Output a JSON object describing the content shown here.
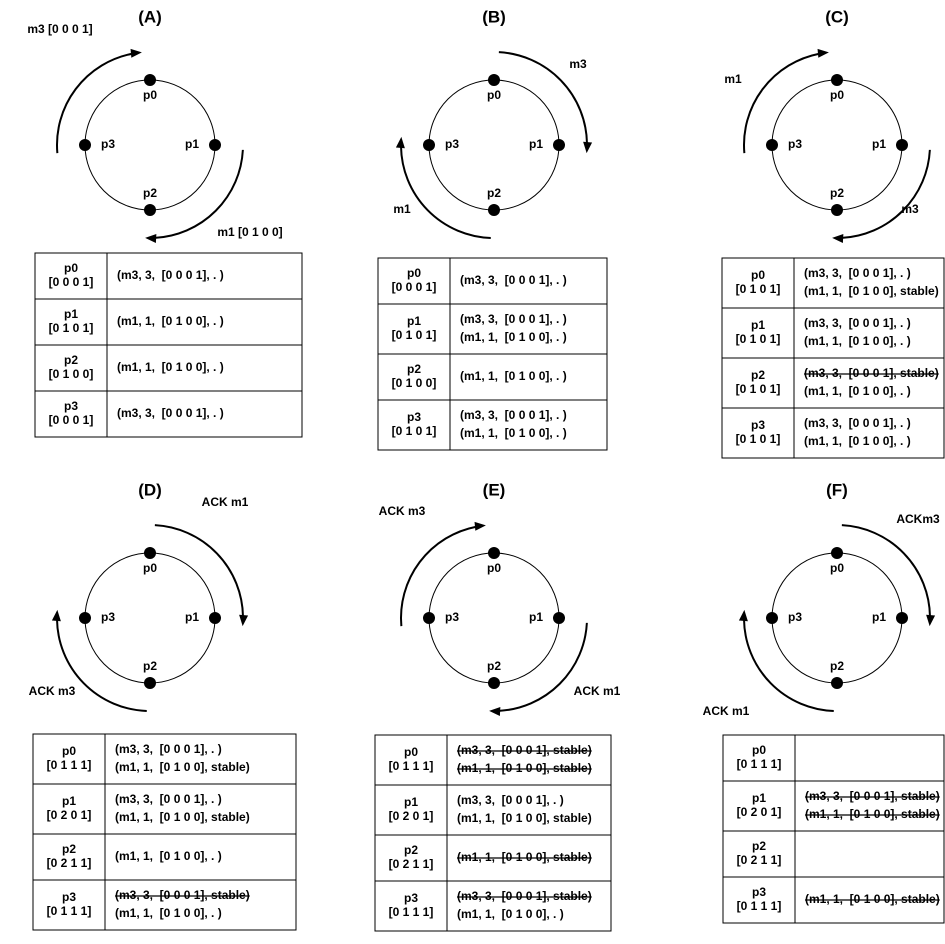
{
  "panels": [
    {
      "label": "(A)",
      "nodes": [
        "p0",
        "p1",
        "p2",
        "p3"
      ],
      "arrows": [
        "m3 [0 0 0 1]",
        "m1 [0 1 0 0]"
      ],
      "rows": [
        {
          "process": "p0",
          "vector": "[0 0 0 1]",
          "entries": [
            {
              "text": "(m3, 3,  [0 0 0 1], . )"
            }
          ]
        },
        {
          "process": "p1",
          "vector": "[0 1 0 1]",
          "entries": [
            {
              "text": "(m1, 1,  [0 1 0 0], . )"
            }
          ]
        },
        {
          "process": "p2",
          "vector": "[0 1 0 0]",
          "entries": [
            {
              "text": "(m1, 1,  [0 1 0 0], . )"
            }
          ]
        },
        {
          "process": "p3",
          "vector": "[0 0 0 1]",
          "entries": [
            {
              "text": "(m3, 3,  [0 0 0 1], . )"
            }
          ]
        }
      ]
    },
    {
      "label": "(B)",
      "nodes": [
        "p0",
        "p1",
        "p2",
        "p3"
      ],
      "arrows": [
        "m3",
        "m1"
      ],
      "rows": [
        {
          "process": "p0",
          "vector": "[0 0 0 1]",
          "entries": [
            {
              "text": "(m3, 3,  [0 0 0 1], . )"
            }
          ]
        },
        {
          "process": "p1",
          "vector": "[0 1 0 1]",
          "entries": [
            {
              "text": "(m3, 3,  [0 0 0 1], . )"
            },
            {
              "text": "(m1, 1,  [0 1 0 0], . )"
            }
          ]
        },
        {
          "process": "p2",
          "vector": "[0 1 0 0]",
          "entries": [
            {
              "text": "(m1, 1,  [0 1 0 0], . )"
            }
          ]
        },
        {
          "process": "p3",
          "vector": "[0 1 0 1]",
          "entries": [
            {
              "text": "(m3, 3,  [0 0 0 1], . )"
            },
            {
              "text": "(m1, 1,  [0 1 0 0], . )"
            }
          ]
        }
      ]
    },
    {
      "label": "(C)",
      "nodes": [
        "p0",
        "p1",
        "p2",
        "p3"
      ],
      "arrows": [
        "m1",
        "m3"
      ],
      "rows": [
        {
          "process": "p0",
          "vector": "[0 1 0 1]",
          "entries": [
            {
              "text": "(m3, 3,  [0 0 0 1], . )"
            },
            {
              "text": "(m1, 1,  [0 1 0 0], stable)"
            }
          ]
        },
        {
          "process": "p1",
          "vector": "[0 1 0 1]",
          "entries": [
            {
              "text": "(m3, 3,  [0 0 0 1], . )"
            },
            {
              "text": "(m1, 1,  [0 1 0 0], . )"
            }
          ]
        },
        {
          "process": "p2",
          "vector": "[0 1 0 1]",
          "entries": [
            {
              "text": "(m3, 3,  [0 0 0 1], stable)",
              "struck": true
            },
            {
              "text": "(m1, 1,  [0 1 0 0], . )"
            }
          ]
        },
        {
          "process": "p3",
          "vector": "[0 1 0 1]",
          "entries": [
            {
              "text": "(m3, 3,  [0 0 0 1], . )"
            },
            {
              "text": "(m1, 1,  [0 1 0 0], . )"
            }
          ]
        }
      ]
    },
    {
      "label": "(D)",
      "nodes": [
        "p0",
        "p1",
        "p2",
        "p3"
      ],
      "arrows": [
        "ACK m1",
        "ACK m3"
      ],
      "rows": [
        {
          "process": "p0",
          "vector": "[0 1 1 1]",
          "entries": [
            {
              "text": "(m3, 3,  [0 0 0 1], . )"
            },
            {
              "text": "(m1, 1,  [0 1 0 0], stable)"
            }
          ]
        },
        {
          "process": "p1",
          "vector": "[0 2 0 1]",
          "entries": [
            {
              "text": "(m3, 3,  [0 0 0 1], . )"
            },
            {
              "text": "(m1, 1,  [0 1 0 0], stable)"
            }
          ]
        },
        {
          "process": "p2",
          "vector": "[0 2 1 1]",
          "entries": [
            {
              "text": "(m1, 1,  [0 1 0 0], . )"
            }
          ]
        },
        {
          "process": "p3",
          "vector": "[0 1 1 1]",
          "entries": [
            {
              "text": "(m3, 3,  [0 0 0 1], stable)",
              "struck": true
            },
            {
              "text": "(m1, 1,  [0 1 0 0], . )"
            }
          ]
        }
      ]
    },
    {
      "label": "(E)",
      "nodes": [
        "p0",
        "p1",
        "p2",
        "p3"
      ],
      "arrows": [
        "ACK m3",
        "ACK m1"
      ],
      "rows": [
        {
          "process": "p0",
          "vector": "[0 1 1 1]",
          "entries": [
            {
              "text": "(m3, 3,  [0 0 0 1], stable)",
              "struck": true
            },
            {
              "text": "(m1, 1,  [0 1 0 0], stable)",
              "struck": true
            }
          ]
        },
        {
          "process": "p1",
          "vector": "[0 2 0 1]",
          "entries": [
            {
              "text": "(m3, 3,  [0 0 0 1], . )"
            },
            {
              "text": "(m1, 1,  [0 1 0 0], stable)"
            }
          ]
        },
        {
          "process": "p2",
          "vector": "[0 2 1 1]",
          "entries": [
            {
              "text": "(m1, 1,  [0 1 0 0], stable)",
              "struck": true
            }
          ]
        },
        {
          "process": "p3",
          "vector": "[0 1 1 1]",
          "entries": [
            {
              "text": "(m3, 3,  [0 0 0 1], stable)",
              "struck": true
            },
            {
              "text": "(m1, 1,  [0 1 0 0], . )"
            }
          ]
        }
      ]
    },
    {
      "label": "(F)",
      "nodes": [
        "p0",
        "p1",
        "p2",
        "p3"
      ],
      "arrows": [
        "ACKm3",
        "ACK m1"
      ],
      "rows": [
        {
          "process": "p0",
          "vector": "[0 1 1 1]",
          "entries": []
        },
        {
          "process": "p1",
          "vector": "[0 2 0 1]",
          "entries": [
            {
              "text": "(m3, 3,  [0 0 0 1], stable)",
              "struck": true
            },
            {
              "text": "(m1, 1,  [0 1 0 0], stable)",
              "struck": true
            }
          ]
        },
        {
          "process": "p2",
          "vector": "[0 2 1 1]",
          "entries": []
        },
        {
          "process": "p3",
          "vector": "[0 1 1 1]",
          "entries": [
            {
              "text": "(m1, 1,  [0 1 0 0], stable)",
              "struck": true
            }
          ]
        }
      ]
    }
  ]
}
